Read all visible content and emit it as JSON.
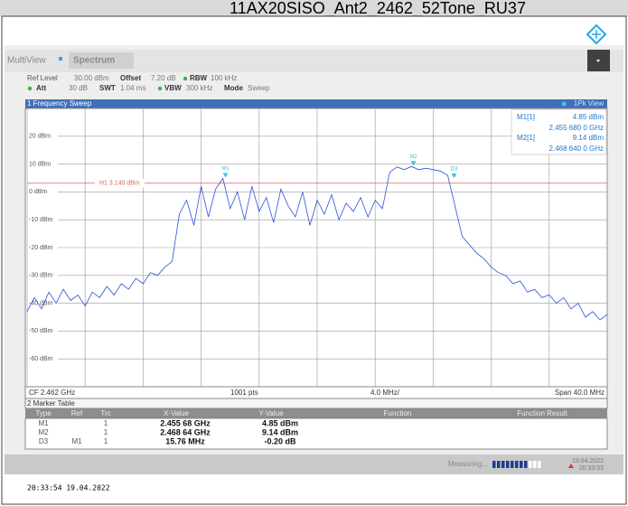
{
  "title": "11AX20SISO_Ant2_2462_52Tone_RU37",
  "toolbar": {
    "tabs": [
      "MultiView",
      "Spectrum"
    ]
  },
  "settings": [
    {
      "label": "Ref Level",
      "value": "30.00 dBm"
    },
    {
      "label": "Offset",
      "value": "7.20 dB"
    },
    {
      "label": "RBW",
      "value": "100 kHz"
    },
    {
      "label": "Att",
      "value": "30 dB"
    },
    {
      "label": "SWT",
      "value": "1.04 ms"
    },
    {
      "label": "VBW",
      "value": "300 kHz"
    },
    {
      "label": "Mode",
      "value": "Sweep"
    }
  ],
  "chart_data": {
    "type": "line",
    "panel_title": "1 Frequency Sweep",
    "xlim": [
      2.442,
      2.482
    ],
    "xticks": [
      2.442,
      2.446,
      2.45,
      2.454,
      2.458,
      2.462,
      2.466,
      2.47,
      2.474,
      2.478,
      2.482
    ],
    "ylim": [
      -70,
      30
    ],
    "yticks": [
      {
        "value": 20,
        "label": "20 dBm"
      },
      {
        "value": 10,
        "label": "10 dBm"
      },
      {
        "value": 0,
        "label": "0 dBm"
      },
      {
        "value": -10,
        "label": "-10 dBm"
      },
      {
        "value": -20,
        "label": "-20 dBm"
      },
      {
        "value": -30,
        "label": "-30 dBm"
      },
      {
        "value": -40,
        "label": "-40 dBm"
      },
      {
        "value": -50,
        "label": "-50 dBm"
      },
      {
        "value": -60,
        "label": "-60 dBm"
      }
    ],
    "grid": true,
    "x": [
      2.442,
      2.4425,
      2.443,
      2.4435,
      2.444,
      2.4445,
      2.445,
      2.4455,
      2.446,
      2.4465,
      2.447,
      2.4475,
      2.448,
      2.4485,
      2.449,
      2.4495,
      2.45,
      2.4505,
      2.451,
      2.4515,
      2.452,
      2.4525,
      2.453,
      2.4535,
      2.454,
      2.4545,
      2.455,
      2.4555,
      2.456,
      2.4565,
      2.457,
      2.4575,
      2.458,
      2.4585,
      2.459,
      2.4595,
      2.46,
      2.4605,
      2.461,
      2.4615,
      2.462,
      2.4625,
      2.463,
      2.4635,
      2.464,
      2.4645,
      2.465,
      2.4655,
      2.466,
      2.4665,
      2.467,
      2.4675,
      2.468,
      2.4685,
      2.469,
      2.4695,
      2.47,
      2.4705,
      2.471,
      2.4715,
      2.472,
      2.4725,
      2.473,
      2.4735,
      2.474,
      2.4745,
      2.475,
      2.4755,
      2.476,
      2.4765,
      2.477,
      2.4775,
      2.478,
      2.4785,
      2.479,
      2.4795,
      2.48,
      2.4805,
      2.481,
      2.4815,
      2.482
    ],
    "series": [
      {
        "name": "1Pk View",
        "color": "#2b4fd8",
        "values": [
          -43,
          -38,
          -42,
          -36,
          -40,
          -35,
          -39,
          -37,
          -41,
          -36,
          -38,
          -34,
          -37,
          -33,
          -35,
          -31,
          -33,
          -29,
          -30,
          -27,
          -25,
          -8,
          -3,
          -12,
          2,
          -9,
          1,
          4.85,
          -6,
          0,
          -10,
          2,
          -7,
          -2,
          -11,
          1,
          -5,
          -9,
          0,
          -12,
          -3,
          -8,
          -1,
          -10,
          -4,
          -7,
          -2,
          -9,
          -3,
          -6,
          7,
          9,
          8,
          9.14,
          8,
          8.5,
          8,
          7.5,
          6,
          -5,
          -16,
          -19,
          -22,
          -24,
          -27,
          -29,
          -30,
          -33,
          -32,
          -36,
          -35,
          -38,
          -37,
          -40,
          -38,
          -42,
          -40,
          -45,
          -43,
          -46,
          -44
        ]
      }
    ],
    "hline": {
      "label": "H1 3.140 dBm",
      "value": 3.14,
      "color": "#e06060"
    },
    "markers": [
      {
        "name": "M1",
        "x": 2.45568,
        "y": 4.85
      },
      {
        "name": "M2",
        "x": 2.46864,
        "y": 9.14
      },
      {
        "name": "D3",
        "x": 2.47144,
        "y": 4.65
      }
    ],
    "readouts": [
      {
        "name": "M1[1]",
        "level": "4.85 dBm",
        "freq": "2.455 680 0 GHz"
      },
      {
        "name": "M2[1]",
        "level": "9.14 dBm",
        "freq": "2.468 640 0 GHz"
      }
    ],
    "footer": {
      "center": "CF 2.462 GHz",
      "points": "1001 pts",
      "per_div": "4.0 MHz/",
      "span": "Span 40.0 MHz"
    }
  },
  "marker_table": {
    "title": "2 Marker Table",
    "columns": [
      "Type",
      "Ref",
      "Trc",
      "X-Value",
      "Y-Value",
      "Function",
      "Function Result"
    ],
    "rows": [
      {
        "type": "M1",
        "trc": "1",
        "x": "2.455 68 GHz",
        "y": "4.85 dBm"
      },
      {
        "type": "M2",
        "trc": "1",
        "x": "2.468 64 GHz",
        "y": "9.14 dBm"
      },
      {
        "type": "D3",
        "ref": "M1",
        "trc": "1",
        "x": "15.76 MHz",
        "y": "-0.20 dB"
      }
    ]
  },
  "status": {
    "text": "Measuring...",
    "date": "19.04.2022",
    "time": "20:33:53"
  },
  "footer": "20:33:54 19.04.2022"
}
